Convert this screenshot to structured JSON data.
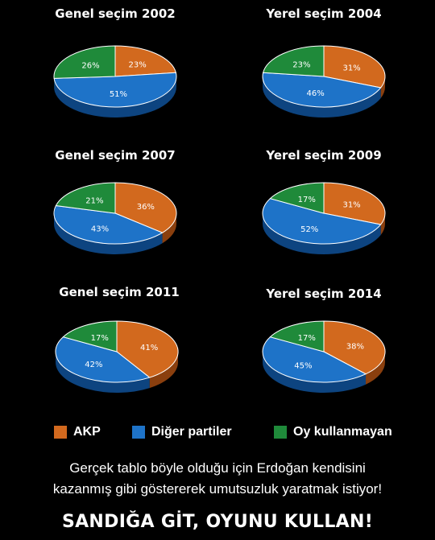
{
  "chart_data": [
    {
      "type": "pie",
      "title": "Genel seçim 2002",
      "categories": [
        "AKP",
        "Diğer partiler",
        "Oy kullanmayan"
      ],
      "values": [
        23,
        51,
        26
      ]
    },
    {
      "type": "pie",
      "title": "Yerel seçim 2004",
      "categories": [
        "AKP",
        "Diğer partiler",
        "Oy kullanmayan"
      ],
      "values": [
        31,
        46,
        23
      ]
    },
    {
      "type": "pie",
      "title": "Genel seçim 2007",
      "categories": [
        "AKP",
        "Diğer partiler",
        "Oy kullanmayan"
      ],
      "values": [
        36,
        43,
        21
      ]
    },
    {
      "type": "pie",
      "title": "Yerel seçim 2009",
      "categories": [
        "AKP",
        "Diğer partiler",
        "Oy kullanmayan"
      ],
      "values": [
        31,
        52,
        17
      ]
    },
    {
      "type": "pie",
      "title": "Genel seçim 2011",
      "categories": [
        "AKP",
        "Diğer partiler",
        "Oy kullanmayan"
      ],
      "values": [
        41,
        42,
        17
      ]
    },
    {
      "type": "pie",
      "title": "Yerel seçim 2014",
      "categories": [
        "AKP",
        "Diğer partiler",
        "Oy kullanmayan"
      ],
      "values": [
        38,
        45,
        17
      ]
    }
  ],
  "legend": [
    {
      "label": "AKP",
      "color": "#d2691e"
    },
    {
      "label": "Diğer partiler",
      "color": "#1e73c8"
    },
    {
      "label": "Oy kullanmayan",
      "color": "#1f8a3a"
    }
  ],
  "caption_line1": "Gerçek tablo böyle olduğu için Erdoğan kendisini",
  "caption_line2": "kazanmış gibi göstererek umutsuzluk yaratmak istiyor!",
  "slogan": "SANDIĞA GİT, OYUNU KULLAN!"
}
